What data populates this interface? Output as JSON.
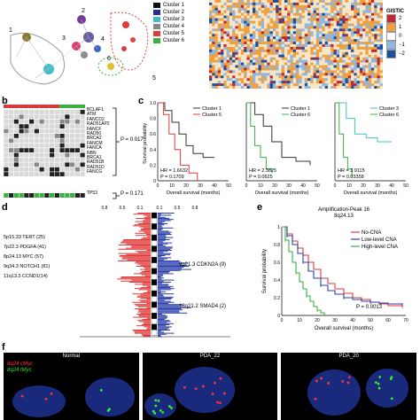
{
  "panels": {
    "a": "",
    "b": "b",
    "c": "c",
    "d": "d",
    "e": "e",
    "f": "f"
  },
  "network": {
    "cluster_numbers": [
      "1",
      "2",
      "3",
      "4",
      "5",
      "6"
    ],
    "legend": [
      {
        "label": "Cluster 1",
        "color": "#111111"
      },
      {
        "label": "Cluster 2",
        "color": "#2b2b9a"
      },
      {
        "label": "Cluster 3",
        "color": "#3fc0c8"
      },
      {
        "label": "Cluster 4",
        "color": "#888888"
      },
      {
        "label": "Cluster 5",
        "color": "#e03a3a"
      },
      {
        "label": "Cluster 6",
        "color": "#3ab040"
      }
    ]
  },
  "gistic": {
    "title": "GISTIC",
    "levels": [
      {
        "label": "2",
        "color": "#c1272d"
      },
      {
        "label": "1",
        "color": "#f2a03d"
      },
      {
        "label": "0",
        "color": "#ffffff"
      },
      {
        "label": "−1",
        "color": "#8fb7e0"
      },
      {
        "label": "−2",
        "color": "#1f4e9c"
      }
    ]
  },
  "mutation_panel": {
    "genes": [
      "BCLAF1",
      "ATM",
      "FANCD2",
      "RAD51AP2",
      "FANCF",
      "RAD50",
      "BRCA2",
      "FANCM",
      "FANCA",
      "NBN",
      "BRCA1",
      "RAD51B",
      "RAD51D",
      "FANCG"
    ],
    "tp53_label": "TP53",
    "p_values": [
      "P = 0.017",
      "P = 0.171"
    ]
  },
  "survival_c": [
    {
      "legend": [
        "Cluster 1",
        "Cluster 5"
      ],
      "colors": [
        "#333333",
        "#e03a3a"
      ],
      "hr": "HR = 1.6632",
      "p": "P = 0.1709"
    },
    {
      "legend": [
        "Cluster 1",
        "Cluster 6"
      ],
      "colors": [
        "#333333",
        "#3ab040"
      ],
      "hr": "HR = 2.3825",
      "p": "P = 0.0625"
    },
    {
      "legend": [
        "Cluster 3",
        "Cluster 6"
      ],
      "colors": [
        "#3fc0c8",
        "#3ab040"
      ],
      "hr": "HR = 3.9115",
      "p": "P = 0.03358"
    }
  ],
  "survival_c_axes": {
    "ylabel": "Survival probability",
    "xlabel": "Overall survival (months)",
    "xticks": [
      "0",
      "10",
      "20",
      "30",
      "40",
      "50"
    ],
    "yticks": [
      "0",
      "0.2",
      "0.4",
      "0.6",
      "0.8",
      "1.0"
    ]
  },
  "panel_d": {
    "amp_labels": [
      "5p15.33 TERT (25)",
      "7p22.3 PDGFA (41)",
      "8p24.13 MYC (57)",
      "9q34.3 NOTCH1 (81)",
      "11q13.3 CCND1(14)"
    ],
    "del_labels": [
      "9p21.3 CDKN2A (9)",
      "18q21.2 SMAD4 (2)"
    ],
    "top_ticks_left": [
      "0.8",
      "0.5",
      "0.1"
    ],
    "top_ticks_right": [
      "0.1",
      "0.5",
      "0.8"
    ]
  },
  "chart_data": {
    "type": "line",
    "title": "Amplification-Peak 16\n8q24.13",
    "xlabel": "Overall survival (months)",
    "ylabel": "Survival probability",
    "xlim": [
      0,
      70
    ],
    "ylim": [
      0,
      1.0
    ],
    "xticks": [
      0,
      10,
      20,
      30,
      40,
      50,
      60,
      70
    ],
    "yticks": [
      0,
      0.2,
      0.4,
      0.6,
      0.8,
      1.0
    ],
    "series": [
      {
        "name": "No-CNA",
        "color": "#e03a3a",
        "x": [
          0,
          3,
          6,
          9,
          12,
          15,
          18,
          22,
          26,
          30,
          35,
          40,
          45,
          50,
          55,
          60,
          68
        ],
        "y": [
          1.0,
          0.92,
          0.84,
          0.76,
          0.68,
          0.6,
          0.52,
          0.42,
          0.36,
          0.3,
          0.25,
          0.2,
          0.18,
          0.15,
          0.13,
          0.11,
          0.1
        ]
      },
      {
        "name": "Low-level CNA",
        "color": "#2b3fa8",
        "x": [
          0,
          3,
          6,
          9,
          12,
          15,
          18,
          22,
          26,
          30,
          35,
          40,
          45,
          50,
          55,
          60,
          68
        ],
        "y": [
          1.0,
          0.9,
          0.8,
          0.7,
          0.6,
          0.5,
          0.42,
          0.34,
          0.28,
          0.24,
          0.2,
          0.18,
          0.16,
          0.15,
          0.14,
          0.13,
          0.12
        ]
      },
      {
        "name": "High-level CNA",
        "color": "#3ab040",
        "x": [
          0,
          2,
          4,
          6,
          8,
          10,
          12,
          14,
          16,
          18,
          20,
          22,
          24
        ],
        "y": [
          1.0,
          0.85,
          0.72,
          0.6,
          0.48,
          0.38,
          0.3,
          0.22,
          0.16,
          0.1,
          0.06,
          0.03,
          0.0
        ]
      }
    ],
    "annotation": "P = 0.0013"
  },
  "panel_f": {
    "probe_labels": [
      "8q24 cMyc",
      "8q24 tMyc"
    ],
    "images": [
      "Normal",
      "PDA_22",
      "PDA_20"
    ]
  }
}
